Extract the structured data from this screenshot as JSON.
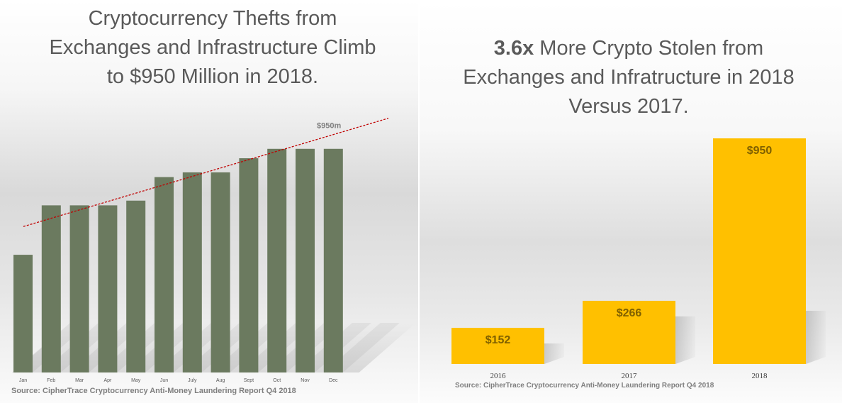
{
  "chart_data": [
    {
      "type": "bar",
      "title": "Cryptocurrency Thefts from Exchanges and Infrastructure Climb to $950 Million in 2018.",
      "categories": [
        "Jan",
        "Feb",
        "Mar",
        "Apr",
        "May",
        "Jun",
        "July",
        "Aug",
        "Sept",
        "Oct",
        "Nov",
        "Dec"
      ],
      "values": [
        500,
        710,
        710,
        710,
        730,
        830,
        850,
        850,
        910,
        950,
        950,
        950
      ],
      "ylim": [
        0,
        1100
      ],
      "trendline": {
        "style": "dashed",
        "color": "#c00000",
        "start_value": 620,
        "end_value": 1080,
        "label": "$950m"
      },
      "bar_color": "#6b7a5f",
      "grid": false,
      "legend": "none",
      "source": "Source: CipherTrace Cryptocurrency Anti-Money Laundering Report Q4 2018"
    },
    {
      "type": "bar",
      "title_bold": "3.6x",
      "title_rest": " More Crypto Stolen from Exchanges and Infratructure in 2018 Versus 2017.",
      "categories": [
        "2016",
        "2017",
        "2018"
      ],
      "values": [
        152,
        266,
        950
      ],
      "data_labels": [
        "$152",
        "$266",
        "$950"
      ],
      "ylim": [
        0,
        950
      ],
      "bar_color": "#ffc000",
      "label_color": "#7f6000",
      "grid": false,
      "legend": "none",
      "source": "Source: CipherTrace Cryptocurrency Anti-Money Laundering Report Q4 2018"
    }
  ]
}
